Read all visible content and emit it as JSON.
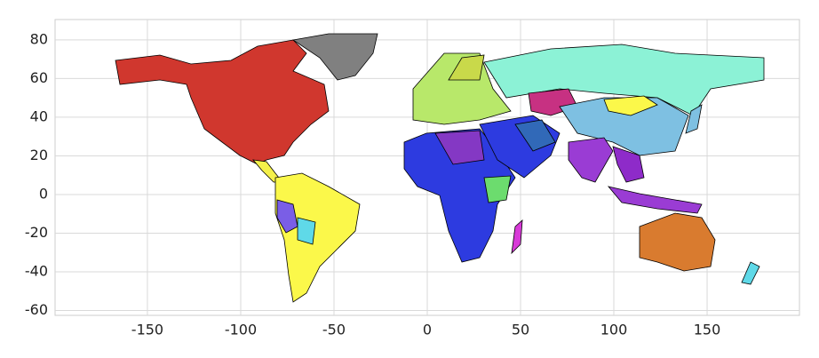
{
  "chart_data": {
    "type": "map",
    "xlim": [
      -199.5,
      199.5
    ],
    "ylim": [
      -62.5,
      90.5
    ],
    "xticks": [
      -150,
      -100,
      -50,
      0,
      50,
      100,
      150
    ],
    "yticks": [
      -60,
      -40,
      -20,
      0,
      20,
      40,
      60,
      80
    ],
    "grid": true
  }
}
